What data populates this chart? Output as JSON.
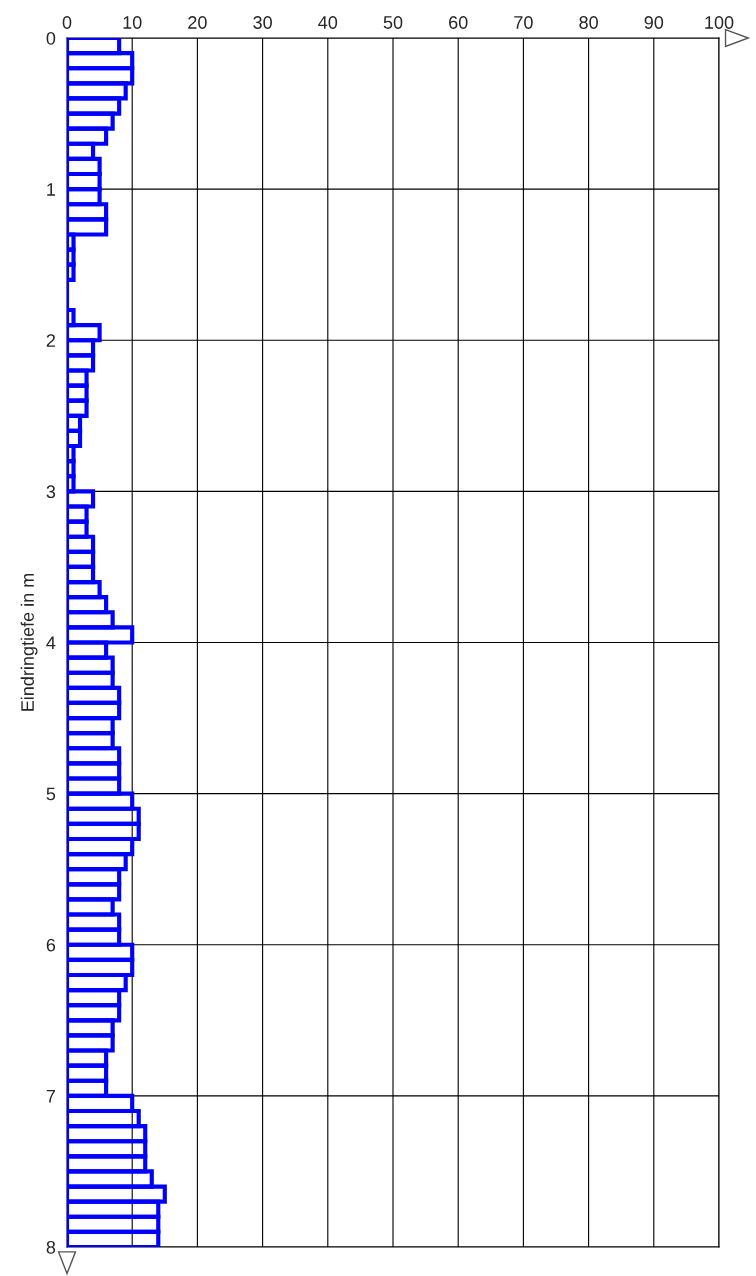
{
  "chart_data": {
    "type": "histogram",
    "orientation": "horizontal",
    "ylabel": "Eindringtiefe in m",
    "bins": [
      0,
      0.1,
      0.2,
      0.3,
      0.4,
      0.5,
      0.6,
      0.7,
      0.8,
      0.9,
      1,
      1.1,
      1.2,
      1.3,
      1.4,
      1.5,
      1.6,
      1.7,
      1.8,
      1.9,
      2,
      2.1,
      2.2,
      2.3,
      2.4,
      2.5,
      2.6,
      2.7,
      2.8,
      2.9,
      3,
      3.1,
      3.2,
      3.3,
      3.4,
      3.5,
      3.6,
      3.7,
      3.8,
      3.9,
      4,
      4.1,
      4.2,
      4.3,
      4.4,
      4.5,
      4.6,
      4.7,
      4.8,
      4.9,
      5,
      5.1,
      5.2,
      5.3,
      5.4,
      5.5,
      5.6,
      5.7,
      5.8,
      5.9,
      6,
      6.1,
      6.2,
      6.3,
      6.4,
      6.5,
      6.6,
      6.7,
      6.8,
      6.9,
      7,
      7.1,
      7.2,
      7.3,
      7.4,
      7.5,
      7.6,
      7.7,
      7.8,
      7.9,
      8
    ],
    "values": [
      8,
      10,
      10,
      9,
      8,
      7,
      6,
      4,
      5,
      5,
      5,
      6,
      6,
      1,
      1,
      1,
      0,
      0,
      1,
      5,
      4,
      4,
      3,
      3,
      3,
      2,
      2,
      1,
      1,
      1,
      4,
      3,
      3,
      4,
      4,
      4,
      5,
      6,
      7,
      10,
      6,
      7,
      7,
      8,
      8,
      7,
      7,
      8,
      8,
      8,
      10,
      11,
      11,
      10,
      9,
      8,
      8,
      7,
      8,
      8,
      10,
      10,
      9,
      8,
      8,
      7,
      7,
      6,
      6,
      6,
      10,
      11,
      12,
      12,
      12,
      13,
      15,
      14,
      14,
      14
    ],
    "color": "#0000ff",
    "xlim": [
      0,
      100
    ],
    "xticks": [
      0,
      10,
      20,
      30,
      40,
      50,
      60,
      70,
      80,
      90,
      100
    ],
    "ylim": [
      8,
      0
    ],
    "yticks": [
      0,
      1,
      2,
      3,
      4,
      5,
      6,
      7,
      8
    ],
    "grid": true
  }
}
